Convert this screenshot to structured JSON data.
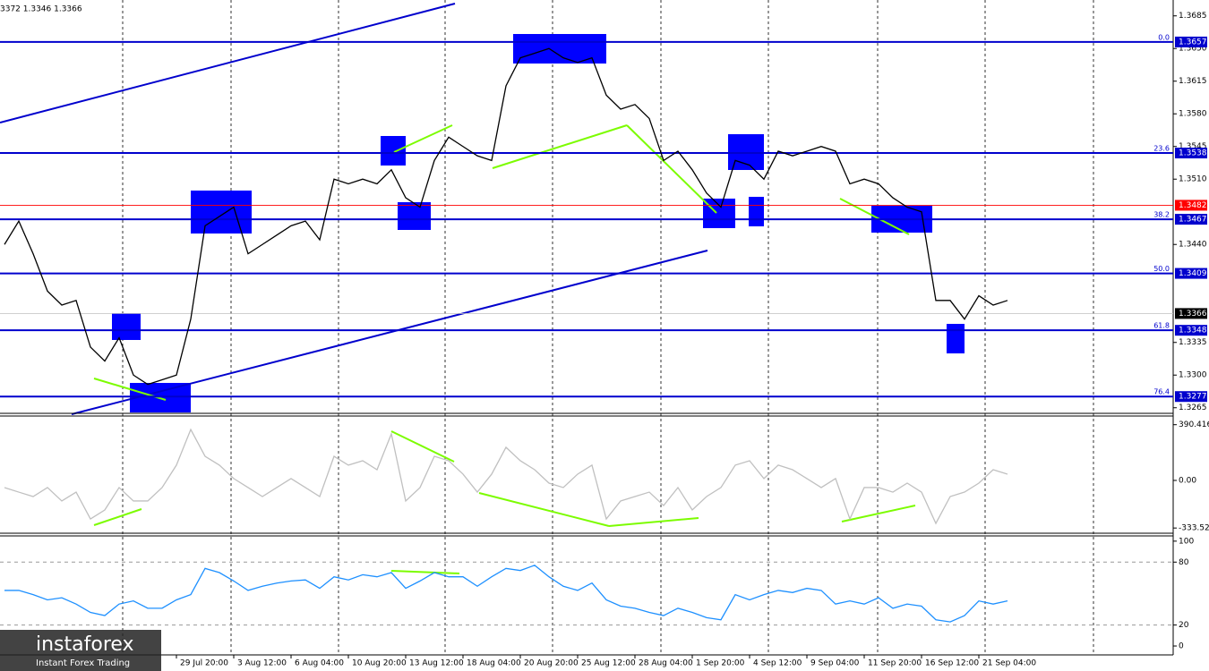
{
  "chart_data": [
    {
      "type": "line",
      "title": "3372 1.3346 1.3366",
      "categories": [
        null,
        null,
        null,
        null,
        null,
        null,
        null,
        null,
        null,
        null,
        null,
        null,
        "29 Jul 20:00",
        null,
        null,
        null,
        "3 Aug 12:00",
        null,
        null,
        null,
        "6 Aug 04:00",
        null,
        null,
        null,
        "10 Aug 20:00",
        null,
        null,
        null,
        "13 Aug 12:00",
        null,
        null,
        null,
        "18 Aug 04:00",
        null,
        null,
        null,
        "20 Aug 20:00",
        null,
        null,
        null,
        "25 Aug 12:00",
        null,
        null,
        null,
        "28 Aug 04:00",
        null,
        null,
        null,
        "1 Sep 20:00",
        null,
        null,
        null,
        "4 Sep 12:00",
        null,
        null,
        null,
        "9 Sep 04:00",
        null,
        null,
        null,
        "11 Sep 20:00",
        null,
        null,
        null,
        "16 Sep 12:00",
        null,
        null,
        null,
        "21 Sep 04:00",
        null,
        null
      ],
      "color": "#000000",
      "values": [
        1.344,
        1.3465,
        1.343,
        1.339,
        1.3375,
        1.338,
        1.333,
        1.3315,
        1.334,
        1.33,
        1.329,
        1.3295,
        1.33,
        1.336,
        1.346,
        1.347,
        1.348,
        1.343,
        1.344,
        1.345,
        1.346,
        1.3465,
        1.3445,
        1.351,
        1.3505,
        1.351,
        1.3505,
        1.352,
        1.349,
        1.348,
        1.353,
        1.3555,
        1.3545,
        1.3535,
        1.353,
        1.361,
        1.364,
        1.3645,
        1.365,
        1.364,
        1.3635,
        1.364,
        1.36,
        1.3585,
        1.359,
        1.3575,
        1.353,
        1.354,
        1.352,
        1.3495,
        1.348,
        1.353,
        1.3525,
        1.351,
        1.354,
        1.3535,
        1.354,
        1.3545,
        1.354,
        1.3505,
        1.351,
        1.3505,
        1.349,
        1.348,
        1.3475,
        1.338,
        1.338,
        1.336,
        1.3385,
        1.3375,
        1.338
      ],
      "ylim": [
        1.3259,
        1.3702
      ],
      "yticks": [
        {
          "value": 1.3685,
          "label": "1.3685"
        },
        {
          "value": 1.365,
          "label": "1.3650"
        },
        {
          "value": 1.3615,
          "label": "1.3615"
        },
        {
          "value": 1.358,
          "label": "1.3580"
        },
        {
          "value": 1.3545,
          "label": "1.3545"
        },
        {
          "value": 1.351,
          "label": "1.3510"
        },
        {
          "value": 1.344,
          "label": "1.3440"
        },
        {
          "value": 1.3335,
          "label": "1.3335"
        },
        {
          "value": 1.33,
          "label": "1.3300"
        },
        {
          "value": 1.3265,
          "label": "1.3265"
        }
      ],
      "levels": [
        {
          "value": 1.3657,
          "fib": "0.0"
        },
        {
          "value": 1.3538,
          "fib": "23.6"
        },
        {
          "value": 1.3467,
          "fib": "38.2"
        },
        {
          "value": 1.3409,
          "fib": "50.0"
        },
        {
          "value": 1.3348,
          "fib": "61.8"
        },
        {
          "value": 1.3277,
          "fib": "76.4"
        }
      ],
      "level_color": "#0000cd",
      "alert_level": 1.3482,
      "alert_color": "#ff0000",
      "current_price": 1.3366
    },
    {
      "type": "line",
      "color": "#c0c0c0",
      "values": [
        -50,
        -82,
        -113,
        -50,
        -144,
        -82,
        -270,
        -207,
        -50,
        -144,
        -144,
        -50,
        107,
        357,
        169,
        107,
        13,
        -50,
        -113,
        -50,
        13,
        -50,
        -113,
        169,
        107,
        138,
        75,
        326,
        -144,
        -50,
        169,
        138,
        44,
        -82,
        44,
        232,
        138,
        75,
        -19,
        -50,
        44,
        107,
        -270,
        -144,
        -113,
        -82,
        -176,
        -50,
        -207,
        -113,
        -50,
        107,
        138,
        13,
        107,
        75,
        13,
        -50,
        13,
        -270,
        -50,
        -50,
        -82,
        -19,
        -82,
        -301,
        -113,
        -82,
        -19,
        75,
        44
      ],
      "ylim": [
        -370,
        470
      ],
      "yticks": [
        390.4163,
        {
          "value": 0,
          "label": "0.00"
        },
        -333.522
      ]
    },
    {
      "type": "line",
      "color": "#1e90ff",
      "values": [
        53,
        53,
        49,
        44,
        46,
        40,
        32,
        29,
        40,
        43,
        36,
        36,
        44,
        49,
        74,
        70,
        62,
        53,
        57,
        60,
        62,
        63,
        55,
        66,
        63,
        68,
        66,
        70,
        55,
        62,
        70,
        66,
        66,
        57,
        66,
        74,
        72,
        77,
        66,
        57,
        53,
        60,
        44,
        38,
        36,
        32,
        29,
        36,
        32,
        27,
        25,
        49,
        44,
        49,
        53,
        51,
        55,
        53,
        40,
        43,
        40,
        46,
        36,
        40,
        38,
        25,
        23,
        29,
        43,
        40,
        43
      ],
      "ylim": [
        -8.5,
        105
      ],
      "yticks": [
        100,
        80,
        20,
        0
      ],
      "grid_ticks": [
        80,
        20
      ]
    }
  ],
  "logo": {
    "brand": "instaforex",
    "tagline": "Instant Forex Trading"
  }
}
